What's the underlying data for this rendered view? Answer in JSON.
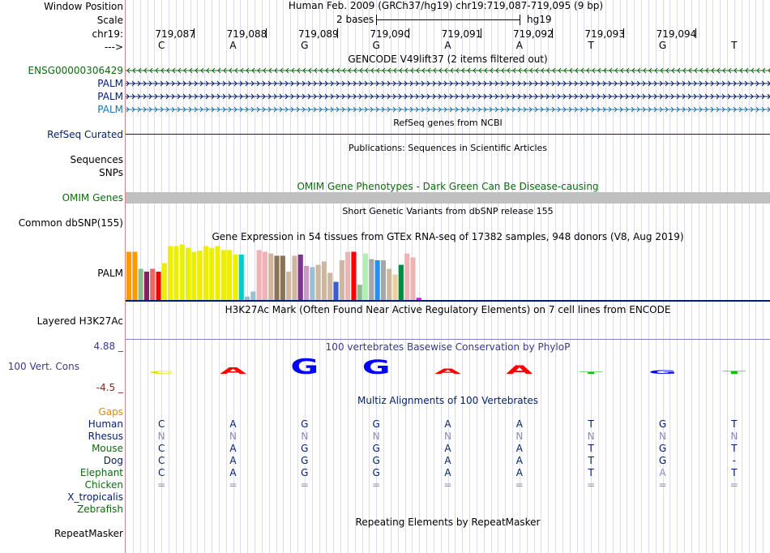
{
  "header": {
    "window_position_label": "Window Position",
    "scale_label": "Scale",
    "chr_label": "chr19:",
    "arrow_label": "--->",
    "assembly_text": "Human Feb. 2009 (GRCh37/hg19)   chr19:719,087-719,095 (9 bp)",
    "scale_text": "2 bases",
    "scale_db": "hg19",
    "coords": [
      "719,087",
      "719,088",
      "719,089",
      "719,090",
      "719,091",
      "719,092",
      "719,093",
      "719,094"
    ],
    "bases": [
      "C",
      "A",
      "G",
      "G",
      "A",
      "A",
      "T",
      "G",
      "T"
    ]
  },
  "tracks": {
    "gencode": {
      "title": "GENCODE V49lift37 (2 items filtered out)",
      "items": [
        {
          "label": "ENSG00000306429",
          "color": "#0c6b0c",
          "direction": "reverse"
        },
        {
          "label": "PALM",
          "color": "#001f6a",
          "direction": "forward"
        },
        {
          "label": "PALM",
          "color": "#001f6a",
          "direction": "forward"
        },
        {
          "label": "PALM",
          "color": "#1a75a8",
          "direction": "forward"
        }
      ]
    },
    "refseq": {
      "label": "RefSeq Curated",
      "title": "RefSeq genes from NCBI"
    },
    "pubs": {
      "title": "Publications: Sequences in Scientific Articles"
    },
    "pubs_labels": {
      "sequences": "Sequences",
      "snps": "SNPs"
    },
    "omim": {
      "label": "OMIM Genes",
      "title": "OMIM Gene Phenotypes - Dark Green Can Be Disease-causing"
    },
    "dbsnp": {
      "label": "Common dbSNP(155)",
      "title": "Short Genetic Variants from dbSNP release 155"
    },
    "gtex": {
      "label": "PALM",
      "title": "Gene Expression in 54 tissues from GTEx RNA-seq of 17382 samples, 948 donors (V8, Aug 2019)",
      "bars": [
        {
          "v": 0.85,
          "c": "#ff9900"
        },
        {
          "v": 0.85,
          "c": "#ff9900"
        },
        {
          "v": 0.55,
          "c": "#8fbc8f"
        },
        {
          "v": 0.5,
          "c": "#8b1c62"
        },
        {
          "v": 0.55,
          "c": "#ee6363"
        },
        {
          "v": 0.5,
          "c": "#ff0000"
        },
        {
          "v": 0.65,
          "c": "#eeee00"
        },
        {
          "v": 0.95,
          "c": "#eeee00"
        },
        {
          "v": 0.95,
          "c": "#eeee00"
        },
        {
          "v": 0.98,
          "c": "#eeee00"
        },
        {
          "v": 0.92,
          "c": "#eeee00"
        },
        {
          "v": 0.85,
          "c": "#eeee00"
        },
        {
          "v": 0.87,
          "c": "#eeee00"
        },
        {
          "v": 0.95,
          "c": "#eeee00"
        },
        {
          "v": 0.92,
          "c": "#eeee00"
        },
        {
          "v": 0.95,
          "c": "#eeee00"
        },
        {
          "v": 0.88,
          "c": "#eeee00"
        },
        {
          "v": 0.88,
          "c": "#eeee00"
        },
        {
          "v": 0.8,
          "c": "#eeee00"
        },
        {
          "v": 0.8,
          "c": "#00cdcd"
        },
        {
          "v": 0.06,
          "c": "#9ac0cd"
        },
        {
          "v": 0.15,
          "c": "#9ac0cd"
        },
        {
          "v": 0.88,
          "c": "#eeb4b4"
        },
        {
          "v": 0.85,
          "c": "#eeb4b4"
        },
        {
          "v": 0.82,
          "c": "#cdb79e"
        },
        {
          "v": 0.78,
          "c": "#8b7355"
        },
        {
          "v": 0.78,
          "c": "#8b7355"
        },
        {
          "v": 0.5,
          "c": "#cdb79e"
        },
        {
          "v": 0.78,
          "c": "#cdb79e"
        },
        {
          "v": 0.8,
          "c": "#7a378b"
        },
        {
          "v": 0.6,
          "c": "#cd96cd"
        },
        {
          "v": 0.58,
          "c": "#9ac0cd"
        },
        {
          "v": 0.62,
          "c": "#cdb79e"
        },
        {
          "v": 0.68,
          "c": "#cdb79e"
        },
        {
          "v": 0.48,
          "c": "#cdb79e"
        },
        {
          "v": 0.32,
          "c": "#3a5fcd"
        },
        {
          "v": 0.7,
          "c": "#cdb79e"
        },
        {
          "v": 0.85,
          "c": "#eeb4b4"
        },
        {
          "v": 0.85,
          "c": "#ff0000"
        },
        {
          "v": 0.27,
          "c": "#8fbc8f"
        },
        {
          "v": 0.82,
          "c": "#b4eeb4"
        },
        {
          "v": 0.72,
          "c": "#a6a6a6"
        },
        {
          "v": 0.7,
          "c": "#1e90ff"
        },
        {
          "v": 0.7,
          "c": "#a6a6a6"
        },
        {
          "v": 0.55,
          "c": "#cdb79e"
        },
        {
          "v": 0.45,
          "c": "#eecfa1"
        },
        {
          "v": 0.62,
          "c": "#008b45"
        },
        {
          "v": 0.82,
          "c": "#eeb4b4"
        },
        {
          "v": 0.75,
          "c": "#eeb4b4"
        },
        {
          "v": 0.04,
          "c": "#ff00ff"
        }
      ]
    },
    "h3k27ac": {
      "label": "Layered H3K27Ac",
      "title": "H3K27Ac Mark (Often Found Near Active Regulatory Elements) on 7 cell lines from ENCODE"
    },
    "phylop": {
      "label": "100 Vert. Cons",
      "title": "100 vertebrates Basewise Conservation by PhyloP",
      "max": "4.88 _",
      "min": "-4.5 _",
      "scores": [
        0.6,
        1.5,
        3.5,
        3.3,
        1.2,
        1.9,
        0.5,
        0.9,
        0.6
      ],
      "glyph_colors": [
        "#e0e000",
        "#ff0000",
        "#0000ff",
        "#0000ff",
        "#ff0000",
        "#ff0000",
        "#00c000",
        "#0000ff",
        "#00c000"
      ]
    },
    "multiz": {
      "title": "Multiz Alignments of 100 Vertebrates",
      "gaps_label": "Gaps",
      "species": [
        {
          "name": "Human",
          "color": "#001f6a",
          "bases": [
            "C",
            "A",
            "G",
            "G",
            "A",
            "A",
            "T",
            "G",
            "T"
          ],
          "seq_color": "#001f6a"
        },
        {
          "name": "Rhesus",
          "color": "#001f6a",
          "bases": [
            "N",
            "N",
            "N",
            "N",
            "N",
            "N",
            "N",
            "N",
            "N"
          ],
          "seq_color": "#8a8ab8"
        },
        {
          "name": "Mouse",
          "color": "#0c6b0c",
          "bases": [
            "C",
            "A",
            "G",
            "G",
            "A",
            "A",
            "T",
            "G",
            "T"
          ],
          "seq_color": "#001f6a"
        },
        {
          "name": "Dog",
          "color": "#001f6a",
          "bases": [
            "C",
            "A",
            "G",
            "G",
            "A",
            "A",
            "T",
            "G",
            "-"
          ],
          "seq_color": "#001f6a"
        },
        {
          "name": "Elephant",
          "color": "#0c6b0c",
          "bases": [
            "C",
            "A",
            "G",
            "G",
            "A",
            "A",
            "T",
            "A",
            "T"
          ],
          "seq_color": "#001f6a"
        },
        {
          "name": "Chicken",
          "color": "#0c6b0c",
          "bases": [
            "=",
            "=",
            "=",
            "=",
            "=",
            "=",
            "=",
            "=",
            "="
          ],
          "seq_color": "#8a8ab8"
        },
        {
          "name": "X_tropicalis",
          "color": "#001f6a",
          "bases": [],
          "seq_color": "#001f6a"
        },
        {
          "name": "Zebrafish",
          "color": "#0c6b0c",
          "bases": [],
          "seq_color": "#001f6a"
        }
      ]
    },
    "repeatmasker": {
      "label": "RepeatMasker",
      "title": "Repeating Elements by RepeatMasker"
    }
  },
  "colors": {
    "gaps": "#e08a00",
    "phylop_label": "#3a3a8a",
    "phylop_min": "#8b2020",
    "omim_bar": "#c0c0c0",
    "guide": "#dcdcf0"
  }
}
